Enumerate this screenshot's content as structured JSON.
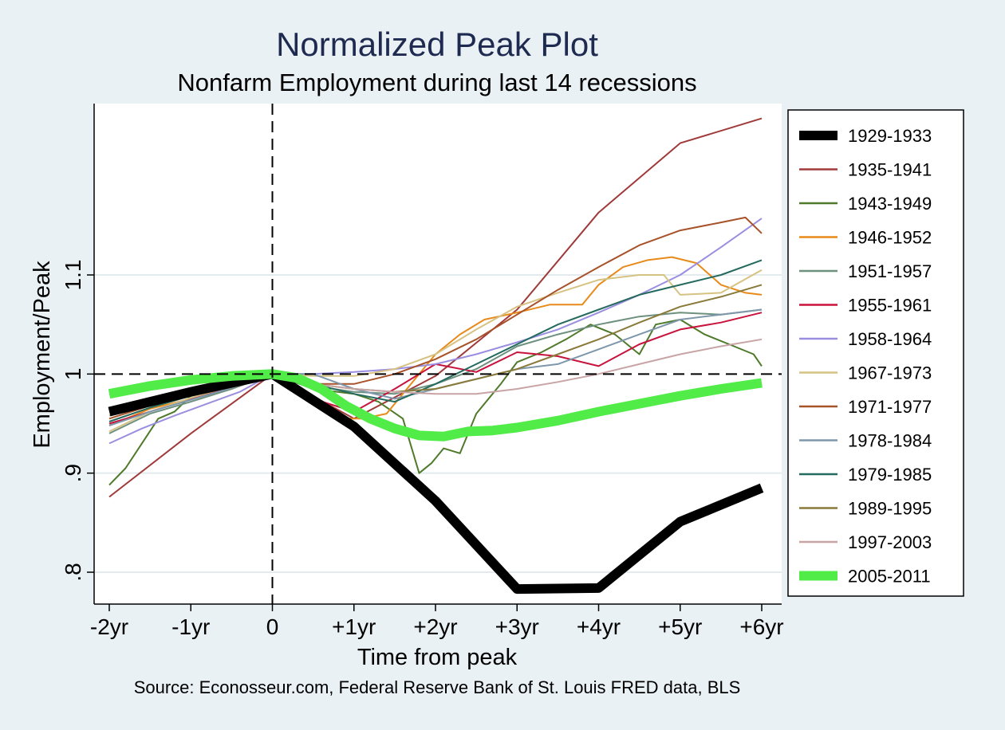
{
  "chart_data": {
    "type": "line",
    "title": "Normalized Peak Plot",
    "subtitle": "Nonfarm Employment during last 14 recessions",
    "xlabel": "Time from peak",
    "ylabel": "Employment/Peak",
    "source": "Source: Econosseur.com, Federal Reserve Bank of St. Louis FRED data, BLS",
    "xlim": [
      -2,
      6
    ],
    "ylim": [
      0.77,
      1.27
    ],
    "x_ticks": [
      {
        "value": -2,
        "label": "-2yr"
      },
      {
        "value": -1,
        "label": "-1yr"
      },
      {
        "value": 0,
        "label": "0"
      },
      {
        "value": 1,
        "label": "+1yr"
      },
      {
        "value": 2,
        "label": "+2yr"
      },
      {
        "value": 3,
        "label": "+3yr"
      },
      {
        "value": 4,
        "label": "+4yr"
      },
      {
        "value": 5,
        "label": "+5yr"
      },
      {
        "value": 6,
        "label": "+6yr"
      }
    ],
    "y_ticks": [
      {
        "value": 0.8,
        "label": ".8"
      },
      {
        "value": 0.9,
        "label": ".9"
      },
      {
        "value": 1.0,
        "label": "1"
      },
      {
        "value": 1.1,
        "label": "1.1"
      }
    ],
    "reference_lines": {
      "x": 0,
      "y": 1.0,
      "style": "dashed"
    },
    "grid": "horizontal",
    "legend_position": "right",
    "series": [
      {
        "name": "1929-1933",
        "color": "#000000",
        "width": 12,
        "points": [
          [
            -2,
            0.962
          ],
          [
            -1,
            0.982
          ],
          [
            0,
            1.0
          ],
          [
            1,
            0.947
          ],
          [
            2,
            0.872
          ],
          [
            3,
            0.783
          ],
          [
            4,
            0.784
          ],
          [
            5,
            0.851
          ],
          [
            6,
            0.885
          ]
        ]
      },
      {
        "name": "1935-1941",
        "color": "#a03a3a",
        "width": 2,
        "points": [
          [
            -2,
            0.876
          ],
          [
            -1,
            0.94
          ],
          [
            0,
            1.0
          ],
          [
            1,
            0.955
          ],
          [
            2,
            0.998
          ],
          [
            3,
            1.065
          ],
          [
            4,
            1.163
          ],
          [
            5,
            1.233
          ],
          [
            6,
            1.258
          ]
        ]
      },
      {
        "name": "1943-1949",
        "color": "#4e7a2a",
        "width": 2,
        "points": [
          [
            -2,
            0.888
          ],
          [
            -1.8,
            0.905
          ],
          [
            -1.6,
            0.93
          ],
          [
            -1.4,
            0.955
          ],
          [
            -1.2,
            0.962
          ],
          [
            -1,
            0.978
          ],
          [
            -0.5,
            0.99
          ],
          [
            0,
            1.0
          ],
          [
            0.5,
            0.985
          ],
          [
            1,
            0.98
          ],
          [
            1.3,
            0.972
          ],
          [
            1.6,
            0.955
          ],
          [
            1.8,
            0.9
          ],
          [
            1.95,
            0.91
          ],
          [
            2.1,
            0.925
          ],
          [
            2.3,
            0.92
          ],
          [
            2.5,
            0.96
          ],
          [
            2.8,
            0.99
          ],
          [
            3,
            1.012
          ],
          [
            3.3,
            1.022
          ],
          [
            3.6,
            1.035
          ],
          [
            3.9,
            1.05
          ],
          [
            4.2,
            1.04
          ],
          [
            4.5,
            1.02
          ],
          [
            4.7,
            1.05
          ],
          [
            5,
            1.055
          ],
          [
            5.3,
            1.04
          ],
          [
            5.6,
            1.03
          ],
          [
            5.9,
            1.02
          ],
          [
            6,
            1.008
          ]
        ]
      },
      {
        "name": "1946-1952",
        "color": "#e88a1a",
        "width": 2,
        "points": [
          [
            -2,
            0.948
          ],
          [
            -1.5,
            0.965
          ],
          [
            -1,
            0.975
          ],
          [
            -0.5,
            0.985
          ],
          [
            0,
            1.0
          ],
          [
            0.5,
            0.975
          ],
          [
            0.8,
            0.955
          ],
          [
            1.1,
            0.955
          ],
          [
            1.4,
            0.96
          ],
          [
            1.7,
            0.99
          ],
          [
            2,
            1.02
          ],
          [
            2.3,
            1.04
          ],
          [
            2.6,
            1.055
          ],
          [
            3,
            1.062
          ],
          [
            3.4,
            1.07
          ],
          [
            3.8,
            1.07
          ],
          [
            4,
            1.09
          ],
          [
            4.3,
            1.108
          ],
          [
            4.6,
            1.115
          ],
          [
            4.9,
            1.118
          ],
          [
            5.2,
            1.112
          ],
          [
            5.5,
            1.09
          ],
          [
            5.8,
            1.082
          ],
          [
            6,
            1.08
          ]
        ]
      },
      {
        "name": "1951-1957",
        "color": "#6e907e",
        "width": 2,
        "points": [
          [
            -2,
            0.94
          ],
          [
            -1.5,
            0.96
          ],
          [
            -1,
            0.972
          ],
          [
            -0.5,
            0.985
          ],
          [
            0,
            1.0
          ],
          [
            0.5,
            0.988
          ],
          [
            1,
            0.982
          ],
          [
            1.5,
            0.98
          ],
          [
            2,
            0.99
          ],
          [
            2.5,
            1.005
          ],
          [
            3,
            1.028
          ],
          [
            3.5,
            1.04
          ],
          [
            4,
            1.05
          ],
          [
            4.5,
            1.058
          ],
          [
            5,
            1.062
          ],
          [
            5.5,
            1.06
          ],
          [
            6,
            1.065
          ]
        ]
      },
      {
        "name": "1955-1961",
        "color": "#c8143c",
        "width": 2,
        "points": [
          [
            -2,
            0.95
          ],
          [
            -1.5,
            0.962
          ],
          [
            -1,
            0.975
          ],
          [
            -0.5,
            0.988
          ],
          [
            0,
            1.0
          ],
          [
            0.5,
            0.975
          ],
          [
            1,
            0.962
          ],
          [
            1.5,
            0.985
          ],
          [
            2,
            1.01
          ],
          [
            2.5,
            1.002
          ],
          [
            3,
            1.022
          ],
          [
            3.5,
            1.018
          ],
          [
            4,
            1.008
          ],
          [
            4.5,
            1.03
          ],
          [
            5,
            1.045
          ],
          [
            5.5,
            1.052
          ],
          [
            6,
            1.062
          ]
        ]
      },
      {
        "name": "1958-1964",
        "color": "#9a8ee0",
        "width": 2,
        "points": [
          [
            -2,
            0.93
          ],
          [
            -1.6,
            0.945
          ],
          [
            -1.2,
            0.958
          ],
          [
            -0.8,
            0.97
          ],
          [
            -0.4,
            0.982
          ],
          [
            0,
            1.0
          ],
          [
            0.5,
            1.0
          ],
          [
            1,
            1.002
          ],
          [
            1.5,
            1.005
          ],
          [
            2,
            1.01
          ],
          [
            2.5,
            1.02
          ],
          [
            3,
            1.032
          ],
          [
            3.5,
            1.045
          ],
          [
            4,
            1.062
          ],
          [
            4.5,
            1.08
          ],
          [
            5,
            1.1
          ],
          [
            5.5,
            1.128
          ],
          [
            6,
            1.157
          ]
        ]
      },
      {
        "name": "1967-1973",
        "color": "#d6c283",
        "width": 2,
        "points": [
          [
            -2,
            0.942
          ],
          [
            -1.5,
            0.962
          ],
          [
            -1,
            0.976
          ],
          [
            -0.5,
            0.988
          ],
          [
            0,
            1.0
          ],
          [
            0.5,
            0.998
          ],
          [
            1,
            0.998
          ],
          [
            1.5,
            1.005
          ],
          [
            2,
            1.02
          ],
          [
            2.5,
            1.045
          ],
          [
            3,
            1.068
          ],
          [
            3.5,
            1.082
          ],
          [
            4,
            1.095
          ],
          [
            4.5,
            1.1
          ],
          [
            4.8,
            1.1
          ],
          [
            5,
            1.08
          ],
          [
            5.5,
            1.082
          ],
          [
            6,
            1.105
          ]
        ]
      },
      {
        "name": "1971-1977",
        "color": "#a8522a",
        "width": 2,
        "points": [
          [
            -2,
            0.955
          ],
          [
            -1.5,
            0.968
          ],
          [
            -1,
            0.978
          ],
          [
            -0.5,
            0.99
          ],
          [
            0,
            1.0
          ],
          [
            0.5,
            0.99
          ],
          [
            1,
            0.99
          ],
          [
            1.5,
            1.0
          ],
          [
            2,
            1.015
          ],
          [
            2.5,
            1.035
          ],
          [
            3,
            1.06
          ],
          [
            3.5,
            1.085
          ],
          [
            4,
            1.108
          ],
          [
            4.5,
            1.13
          ],
          [
            5,
            1.145
          ],
          [
            5.5,
            1.153
          ],
          [
            5.8,
            1.158
          ],
          [
            6,
            1.142
          ]
        ]
      },
      {
        "name": "1978-1984",
        "color": "#7e97ab",
        "width": 2,
        "points": [
          [
            -2,
            0.948
          ],
          [
            -1.5,
            0.962
          ],
          [
            -1,
            0.974
          ],
          [
            -0.5,
            0.986
          ],
          [
            0,
            1.0
          ],
          [
            0.5,
            1.0
          ],
          [
            1,
            0.985
          ],
          [
            1.5,
            0.975
          ],
          [
            2,
            0.985
          ],
          [
            2.5,
            0.995
          ],
          [
            3,
            1.005
          ],
          [
            3.5,
            1.01
          ],
          [
            4,
            1.025
          ],
          [
            4.5,
            1.04
          ],
          [
            5,
            1.055
          ],
          [
            5.5,
            1.06
          ],
          [
            6,
            1.065
          ]
        ]
      },
      {
        "name": "1979-1985",
        "color": "#246a5e",
        "width": 2,
        "points": [
          [
            -2,
            0.952
          ],
          [
            -1.5,
            0.966
          ],
          [
            -1,
            0.978
          ],
          [
            -0.5,
            0.99
          ],
          [
            0,
            1.0
          ],
          [
            0.5,
            0.99
          ],
          [
            1,
            0.98
          ],
          [
            1.5,
            0.972
          ],
          [
            2,
            0.99
          ],
          [
            2.5,
            1.01
          ],
          [
            3,
            1.03
          ],
          [
            3.5,
            1.05
          ],
          [
            4,
            1.065
          ],
          [
            4.5,
            1.08
          ],
          [
            5,
            1.09
          ],
          [
            5.5,
            1.1
          ],
          [
            6,
            1.115
          ]
        ]
      },
      {
        "name": "1989-1995",
        "color": "#8a7a3a",
        "width": 2,
        "points": [
          [
            -2,
            0.958
          ],
          [
            -1.5,
            0.97
          ],
          [
            -1,
            0.98
          ],
          [
            -0.5,
            0.99
          ],
          [
            0,
            1.0
          ],
          [
            0.5,
            0.99
          ],
          [
            1,
            0.985
          ],
          [
            1.5,
            0.982
          ],
          [
            2,
            0.985
          ],
          [
            2.5,
            0.995
          ],
          [
            3,
            1.005
          ],
          [
            3.5,
            1.02
          ],
          [
            4,
            1.035
          ],
          [
            4.5,
            1.052
          ],
          [
            5,
            1.068
          ],
          [
            5.5,
            1.078
          ],
          [
            6,
            1.09
          ]
        ]
      },
      {
        "name": "1997-2003",
        "color": "#c8a4a6",
        "width": 2,
        "points": [
          [
            -2,
            0.958
          ],
          [
            -1.5,
            0.97
          ],
          [
            -1,
            0.98
          ],
          [
            -0.5,
            0.99
          ],
          [
            0,
            1.0
          ],
          [
            0.5,
            0.99
          ],
          [
            1,
            0.985
          ],
          [
            1.5,
            0.982
          ],
          [
            2,
            0.98
          ],
          [
            2.5,
            0.98
          ],
          [
            3,
            0.985
          ],
          [
            3.5,
            0.992
          ],
          [
            4,
            1.0
          ],
          [
            4.5,
            1.01
          ],
          [
            5,
            1.02
          ],
          [
            5.5,
            1.028
          ],
          [
            6,
            1.035
          ]
        ]
      },
      {
        "name": "2005-2011",
        "color": "#52ec48",
        "width": 12,
        "points": [
          [
            -2,
            0.98
          ],
          [
            -1.5,
            0.988
          ],
          [
            -1,
            0.994
          ],
          [
            -0.5,
            0.998
          ],
          [
            0,
            1.0
          ],
          [
            0.3,
            0.996
          ],
          [
            0.6,
            0.985
          ],
          [
            0.9,
            0.968
          ],
          [
            1.2,
            0.955
          ],
          [
            1.5,
            0.945
          ],
          [
            1.8,
            0.938
          ],
          [
            2.1,
            0.937
          ],
          [
            2.4,
            0.942
          ],
          [
            2.7,
            0.943
          ],
          [
            3,
            0.946
          ],
          [
            3.5,
            0.953
          ],
          [
            4,
            0.962
          ],
          [
            4.5,
            0.97
          ],
          [
            5,
            0.978
          ],
          [
            5.5,
            0.985
          ],
          [
            6,
            0.991
          ]
        ]
      }
    ]
  }
}
